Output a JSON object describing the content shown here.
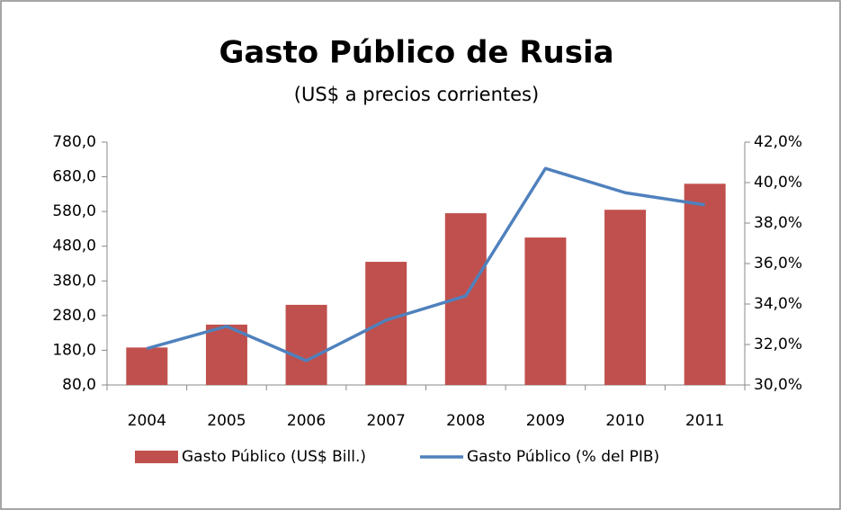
{
  "chart_data": {
    "type": "bar_line",
    "title": "Gasto Público de Rusia",
    "subtitle": "(US$ a precios corrientes)",
    "categories": [
      "2004",
      "2005",
      "2006",
      "2007",
      "2008",
      "2009",
      "2010",
      "2011"
    ],
    "series": [
      {
        "name": "Gasto Público (US$ Bill.)",
        "type": "bar",
        "color": "#c0504d",
        "axis": "y",
        "values": [
          188,
          254,
          311,
          435,
          575,
          505,
          585,
          660
        ]
      },
      {
        "name": "Gasto Público (% del PIB)",
        "type": "line",
        "color": "#4f81bd",
        "axis": "y2",
        "values": [
          31.8,
          32.9,
          31.2,
          33.2,
          34.4,
          40.7,
          39.5,
          38.9
        ]
      }
    ],
    "ylim": [
      80,
      780
    ],
    "yticks": [
      {
        "value": 80,
        "label": "80,0"
      },
      {
        "value": 180,
        "label": "180,0"
      },
      {
        "value": 280,
        "label": "280,0"
      },
      {
        "value": 380,
        "label": "380,0"
      },
      {
        "value": 480,
        "label": "480,0"
      },
      {
        "value": 580,
        "label": "580,0"
      },
      {
        "value": 680,
        "label": "680,0"
      },
      {
        "value": 780,
        "label": "780,0"
      }
    ],
    "y2lim": [
      30,
      42
    ],
    "y2ticks": [
      {
        "value": 30,
        "label": "30,0%"
      },
      {
        "value": 32,
        "label": "32,0%"
      },
      {
        "value": 34,
        "label": "34,0%"
      },
      {
        "value": 36,
        "label": "36,0%"
      },
      {
        "value": 38,
        "label": "38,0%"
      },
      {
        "value": 40,
        "label": "40,0%"
      },
      {
        "value": 42,
        "label": "42,0%"
      }
    ],
    "legend": "bottom"
  }
}
